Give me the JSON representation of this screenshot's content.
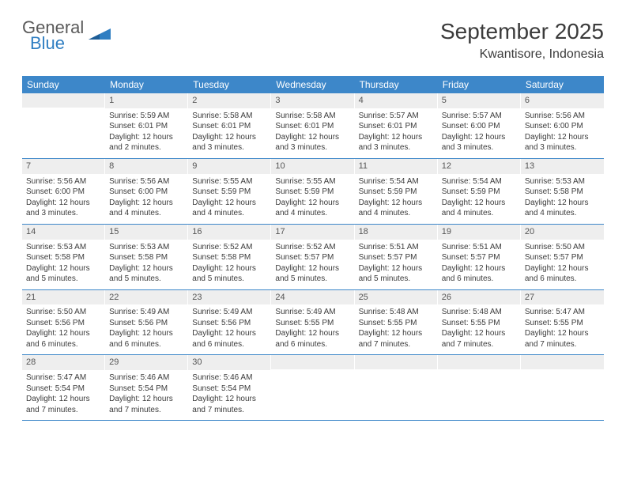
{
  "brand": {
    "name1": "General",
    "name2": "Blue",
    "shape_color": "#2f7ec2"
  },
  "title": "September 2025",
  "location": "Kwantisore, Indonesia",
  "colors": {
    "header_bg": "#3d87c9",
    "header_text": "#ffffff",
    "daynum_bg": "#eeeeee",
    "daynum_text": "#555555",
    "body_text": "#3b3b3b",
    "row_border": "#3d87c9",
    "background": "#ffffff"
  },
  "typography": {
    "title_fontsize": 28,
    "location_fontsize": 16,
    "weekday_fontsize": 12,
    "daynum_fontsize": 11,
    "detail_fontsize": 10
  },
  "layout": {
    "columns": 7,
    "rows": 5,
    "start_weekday": "Sunday",
    "first_day_column": 1
  },
  "weekdays": [
    "Sunday",
    "Monday",
    "Tuesday",
    "Wednesday",
    "Thursday",
    "Friday",
    "Saturday"
  ],
  "days": [
    {
      "n": 1,
      "sunrise": "Sunrise: 5:59 AM",
      "sunset": "Sunset: 6:01 PM",
      "daylight": "Daylight: 12 hours and 2 minutes."
    },
    {
      "n": 2,
      "sunrise": "Sunrise: 5:58 AM",
      "sunset": "Sunset: 6:01 PM",
      "daylight": "Daylight: 12 hours and 3 minutes."
    },
    {
      "n": 3,
      "sunrise": "Sunrise: 5:58 AM",
      "sunset": "Sunset: 6:01 PM",
      "daylight": "Daylight: 12 hours and 3 minutes."
    },
    {
      "n": 4,
      "sunrise": "Sunrise: 5:57 AM",
      "sunset": "Sunset: 6:01 PM",
      "daylight": "Daylight: 12 hours and 3 minutes."
    },
    {
      "n": 5,
      "sunrise": "Sunrise: 5:57 AM",
      "sunset": "Sunset: 6:00 PM",
      "daylight": "Daylight: 12 hours and 3 minutes."
    },
    {
      "n": 6,
      "sunrise": "Sunrise: 5:56 AM",
      "sunset": "Sunset: 6:00 PM",
      "daylight": "Daylight: 12 hours and 3 minutes."
    },
    {
      "n": 7,
      "sunrise": "Sunrise: 5:56 AM",
      "sunset": "Sunset: 6:00 PM",
      "daylight": "Daylight: 12 hours and 3 minutes."
    },
    {
      "n": 8,
      "sunrise": "Sunrise: 5:56 AM",
      "sunset": "Sunset: 6:00 PM",
      "daylight": "Daylight: 12 hours and 4 minutes."
    },
    {
      "n": 9,
      "sunrise": "Sunrise: 5:55 AM",
      "sunset": "Sunset: 5:59 PM",
      "daylight": "Daylight: 12 hours and 4 minutes."
    },
    {
      "n": 10,
      "sunrise": "Sunrise: 5:55 AM",
      "sunset": "Sunset: 5:59 PM",
      "daylight": "Daylight: 12 hours and 4 minutes."
    },
    {
      "n": 11,
      "sunrise": "Sunrise: 5:54 AM",
      "sunset": "Sunset: 5:59 PM",
      "daylight": "Daylight: 12 hours and 4 minutes."
    },
    {
      "n": 12,
      "sunrise": "Sunrise: 5:54 AM",
      "sunset": "Sunset: 5:59 PM",
      "daylight": "Daylight: 12 hours and 4 minutes."
    },
    {
      "n": 13,
      "sunrise": "Sunrise: 5:53 AM",
      "sunset": "Sunset: 5:58 PM",
      "daylight": "Daylight: 12 hours and 4 minutes."
    },
    {
      "n": 14,
      "sunrise": "Sunrise: 5:53 AM",
      "sunset": "Sunset: 5:58 PM",
      "daylight": "Daylight: 12 hours and 5 minutes."
    },
    {
      "n": 15,
      "sunrise": "Sunrise: 5:53 AM",
      "sunset": "Sunset: 5:58 PM",
      "daylight": "Daylight: 12 hours and 5 minutes."
    },
    {
      "n": 16,
      "sunrise": "Sunrise: 5:52 AM",
      "sunset": "Sunset: 5:58 PM",
      "daylight": "Daylight: 12 hours and 5 minutes."
    },
    {
      "n": 17,
      "sunrise": "Sunrise: 5:52 AM",
      "sunset": "Sunset: 5:57 PM",
      "daylight": "Daylight: 12 hours and 5 minutes."
    },
    {
      "n": 18,
      "sunrise": "Sunrise: 5:51 AM",
      "sunset": "Sunset: 5:57 PM",
      "daylight": "Daylight: 12 hours and 5 minutes."
    },
    {
      "n": 19,
      "sunrise": "Sunrise: 5:51 AM",
      "sunset": "Sunset: 5:57 PM",
      "daylight": "Daylight: 12 hours and 6 minutes."
    },
    {
      "n": 20,
      "sunrise": "Sunrise: 5:50 AM",
      "sunset": "Sunset: 5:57 PM",
      "daylight": "Daylight: 12 hours and 6 minutes."
    },
    {
      "n": 21,
      "sunrise": "Sunrise: 5:50 AM",
      "sunset": "Sunset: 5:56 PM",
      "daylight": "Daylight: 12 hours and 6 minutes."
    },
    {
      "n": 22,
      "sunrise": "Sunrise: 5:49 AM",
      "sunset": "Sunset: 5:56 PM",
      "daylight": "Daylight: 12 hours and 6 minutes."
    },
    {
      "n": 23,
      "sunrise": "Sunrise: 5:49 AM",
      "sunset": "Sunset: 5:56 PM",
      "daylight": "Daylight: 12 hours and 6 minutes."
    },
    {
      "n": 24,
      "sunrise": "Sunrise: 5:49 AM",
      "sunset": "Sunset: 5:55 PM",
      "daylight": "Daylight: 12 hours and 6 minutes."
    },
    {
      "n": 25,
      "sunrise": "Sunrise: 5:48 AM",
      "sunset": "Sunset: 5:55 PM",
      "daylight": "Daylight: 12 hours and 7 minutes."
    },
    {
      "n": 26,
      "sunrise": "Sunrise: 5:48 AM",
      "sunset": "Sunset: 5:55 PM",
      "daylight": "Daylight: 12 hours and 7 minutes."
    },
    {
      "n": 27,
      "sunrise": "Sunrise: 5:47 AM",
      "sunset": "Sunset: 5:55 PM",
      "daylight": "Daylight: 12 hours and 7 minutes."
    },
    {
      "n": 28,
      "sunrise": "Sunrise: 5:47 AM",
      "sunset": "Sunset: 5:54 PM",
      "daylight": "Daylight: 12 hours and 7 minutes."
    },
    {
      "n": 29,
      "sunrise": "Sunrise: 5:46 AM",
      "sunset": "Sunset: 5:54 PM",
      "daylight": "Daylight: 12 hours and 7 minutes."
    },
    {
      "n": 30,
      "sunrise": "Sunrise: 5:46 AM",
      "sunset": "Sunset: 5:54 PM",
      "daylight": "Daylight: 12 hours and 7 minutes."
    }
  ]
}
